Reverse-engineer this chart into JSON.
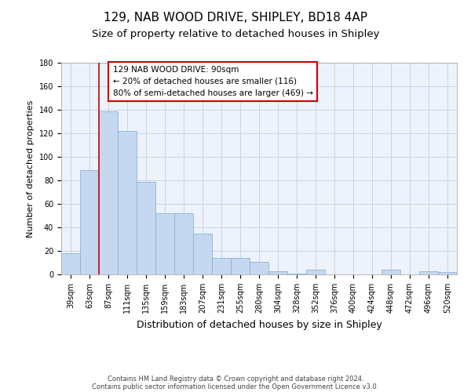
{
  "title": "129, NAB WOOD DRIVE, SHIPLEY, BD18 4AP",
  "subtitle": "Size of property relative to detached houses in Shipley",
  "xlabel": "Distribution of detached houses by size in Shipley",
  "ylabel": "Number of detached properties",
  "categories": [
    "39sqm",
    "63sqm",
    "87sqm",
    "111sqm",
    "135sqm",
    "159sqm",
    "183sqm",
    "207sqm",
    "231sqm",
    "255sqm",
    "280sqm",
    "304sqm",
    "328sqm",
    "352sqm",
    "376sqm",
    "400sqm",
    "424sqm",
    "448sqm",
    "472sqm",
    "496sqm",
    "520sqm"
  ],
  "values": [
    18,
    89,
    139,
    122,
    79,
    52,
    52,
    35,
    14,
    14,
    11,
    3,
    1,
    4,
    0,
    0,
    0,
    4,
    0,
    3,
    2
  ],
  "bar_color": "#c5d8f0",
  "bar_edge_color": "#7aadd4",
  "grid_color": "#c8d4e8",
  "background_color": "#edf2fb",
  "vline_color": "#cc0000",
  "vline_x_index": 2,
  "annotation_text": "129 NAB WOOD DRIVE: 90sqm\n← 20% of detached houses are smaller (116)\n80% of semi-detached houses are larger (469) →",
  "annotation_box_edgecolor": "#cc0000",
  "ylim": [
    0,
    180
  ],
  "yticks": [
    0,
    20,
    40,
    60,
    80,
    100,
    120,
    140,
    160,
    180
  ],
  "footer_line1": "Contains HM Land Registry data © Crown copyright and database right 2024.",
  "footer_line2": "Contains public sector information licensed under the Open Government Licence v3.0.",
  "title_fontsize": 11,
  "subtitle_fontsize": 9.5,
  "xlabel_fontsize": 9,
  "ylabel_fontsize": 8,
  "tick_fontsize": 7,
  "annotation_fontsize": 7.5,
  "footer_fontsize": 6
}
